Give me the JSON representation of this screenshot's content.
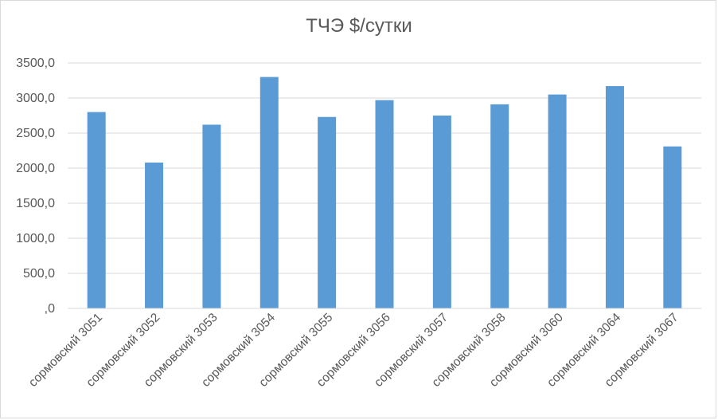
{
  "chart_data": {
    "type": "bar",
    "title": "ТЧЭ $/сутки",
    "xlabel": "",
    "ylabel": "",
    "categories": [
      "сормовский 3051",
      "сормовский 3052",
      "сормовский 3053",
      "сормовский 3054",
      "сормовский 3055",
      "сормовский 3056",
      "сормовский 3057",
      "сормовский 3058",
      "сормовский 3060",
      "сормовский 3064",
      "сормовский 3067"
    ],
    "values": [
      2800,
      2080,
      2620,
      3300,
      2730,
      2970,
      2750,
      2910,
      3050,
      3170,
      2310
    ],
    "ylim": [
      0,
      3500
    ],
    "yticks": [
      0,
      500,
      1000,
      1500,
      2000,
      2500,
      3000,
      3500
    ],
    "ytick_labels": [
      ",0",
      "500,0",
      "1000,0",
      "1500,0",
      "2000,0",
      "2500,0",
      "3000,0",
      "3500,0"
    ],
    "bar_color": "#5B9BD5",
    "grid_color": "#d9d9d9",
    "grid": true,
    "legend": "none"
  }
}
